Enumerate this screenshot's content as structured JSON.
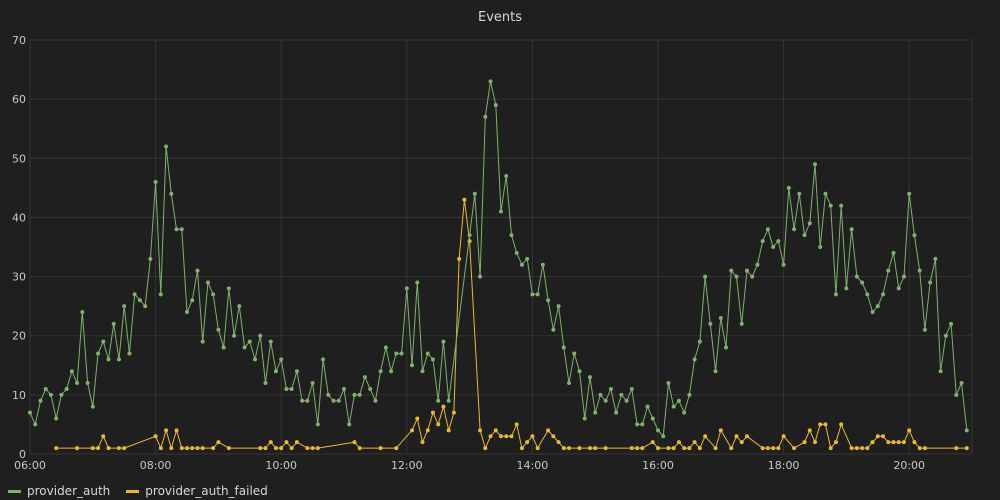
{
  "chart_data": {
    "type": "line",
    "title": "Events",
    "xlabel": "",
    "ylabel": "",
    "ylim": [
      0,
      70
    ],
    "yticks": [
      0,
      10,
      20,
      30,
      40,
      50,
      60,
      70
    ],
    "xlim": [
      "06:00",
      "21:00"
    ],
    "xticks": [
      "06:00",
      "08:00",
      "10:00",
      "12:00",
      "14:00",
      "16:00",
      "18:00",
      "20:00"
    ],
    "grid": true,
    "legend_position": "bottom-left",
    "series": [
      {
        "name": "provider_auth",
        "color": "#7eb26d",
        "points": [
          [
            "06:00",
            7
          ],
          [
            "06:05",
            5
          ],
          [
            "06:10",
            9
          ],
          [
            "06:15",
            11
          ],
          [
            "06:20",
            10
          ],
          [
            "06:25",
            6
          ],
          [
            "06:30",
            10
          ],
          [
            "06:35",
            11
          ],
          [
            "06:40",
            14
          ],
          [
            "06:45",
            12
          ],
          [
            "06:50",
            24
          ],
          [
            "06:55",
            12
          ],
          [
            "07:00",
            8
          ],
          [
            "07:05",
            17
          ],
          [
            "07:10",
            19
          ],
          [
            "07:15",
            16
          ],
          [
            "07:20",
            22
          ],
          [
            "07:25",
            16
          ],
          [
            "07:30",
            25
          ],
          [
            "07:35",
            17
          ],
          [
            "07:40",
            27
          ],
          [
            "07:45",
            26
          ],
          [
            "07:50",
            25
          ],
          [
            "07:55",
            33
          ],
          [
            "08:00",
            46
          ],
          [
            "08:05",
            27
          ],
          [
            "08:10",
            52
          ],
          [
            "08:15",
            44
          ],
          [
            "08:20",
            38
          ],
          [
            "08:25",
            38
          ],
          [
            "08:30",
            24
          ],
          [
            "08:35",
            26
          ],
          [
            "08:40",
            31
          ],
          [
            "08:45",
            19
          ],
          [
            "08:50",
            29
          ],
          [
            "08:55",
            27
          ],
          [
            "09:00",
            21
          ],
          [
            "09:05",
            18
          ],
          [
            "09:10",
            28
          ],
          [
            "09:15",
            20
          ],
          [
            "09:20",
            25
          ],
          [
            "09:25",
            18
          ],
          [
            "09:30",
            19
          ],
          [
            "09:35",
            16
          ],
          [
            "09:40",
            20
          ],
          [
            "09:45",
            12
          ],
          [
            "09:50",
            19
          ],
          [
            "09:55",
            14
          ],
          [
            "10:00",
            16
          ],
          [
            "10:05",
            11
          ],
          [
            "10:10",
            11
          ],
          [
            "10:15",
            14
          ],
          [
            "10:20",
            9
          ],
          [
            "10:25",
            9
          ],
          [
            "10:30",
            12
          ],
          [
            "10:35",
            5
          ],
          [
            "10:40",
            16
          ],
          [
            "10:45",
            10
          ],
          [
            "10:50",
            9
          ],
          [
            "10:55",
            9
          ],
          [
            "11:00",
            11
          ],
          [
            "11:05",
            5
          ],
          [
            "11:10",
            10
          ],
          [
            "11:15",
            10
          ],
          [
            "11:20",
            13
          ],
          [
            "11:25",
            11
          ],
          [
            "11:30",
            9
          ],
          [
            "11:35",
            14
          ],
          [
            "11:40",
            18
          ],
          [
            "11:45",
            14
          ],
          [
            "11:50",
            17
          ],
          [
            "11:55",
            17
          ],
          [
            "12:00",
            28
          ],
          [
            "12:05",
            15
          ],
          [
            "12:10",
            29
          ],
          [
            "12:15",
            14
          ],
          [
            "12:20",
            17
          ],
          [
            "12:25",
            16
          ],
          [
            "12:30",
            9
          ],
          [
            "12:35",
            19
          ],
          [
            "12:40",
            9
          ],
          [
            "13:00",
            37
          ],
          [
            "13:05",
            44
          ],
          [
            "13:10",
            30
          ],
          [
            "13:15",
            57
          ],
          [
            "13:20",
            63
          ],
          [
            "13:25",
            59
          ],
          [
            "13:30",
            41
          ],
          [
            "13:35",
            47
          ],
          [
            "13:40",
            37
          ],
          [
            "13:45",
            34
          ],
          [
            "13:50",
            32
          ],
          [
            "13:55",
            33
          ],
          [
            "14:00",
            27
          ],
          [
            "14:05",
            27
          ],
          [
            "14:10",
            32
          ],
          [
            "14:15",
            26
          ],
          [
            "14:20",
            21
          ],
          [
            "14:25",
            25
          ],
          [
            "14:30",
            18
          ],
          [
            "14:35",
            12
          ],
          [
            "14:40",
            17
          ],
          [
            "14:45",
            14
          ],
          [
            "14:50",
            6
          ],
          [
            "14:55",
            13
          ],
          [
            "15:00",
            7
          ],
          [
            "15:05",
            10
          ],
          [
            "15:10",
            9
          ],
          [
            "15:15",
            11
          ],
          [
            "15:20",
            7
          ],
          [
            "15:25",
            10
          ],
          [
            "15:30",
            9
          ],
          [
            "15:35",
            11
          ],
          [
            "15:40",
            5
          ],
          [
            "15:45",
            5
          ],
          [
            "15:50",
            8
          ],
          [
            "15:55",
            6
          ],
          [
            "16:00",
            4
          ],
          [
            "16:05",
            3
          ],
          [
            "16:10",
            12
          ],
          [
            "16:15",
            8
          ],
          [
            "16:20",
            9
          ],
          [
            "16:25",
            7
          ],
          [
            "16:30",
            10
          ],
          [
            "16:35",
            16
          ],
          [
            "16:40",
            19
          ],
          [
            "16:45",
            30
          ],
          [
            "16:50",
            22
          ],
          [
            "16:55",
            14
          ],
          [
            "17:00",
            23
          ],
          [
            "17:05",
            18
          ],
          [
            "17:10",
            31
          ],
          [
            "17:15",
            30
          ],
          [
            "17:20",
            22
          ],
          [
            "17:25",
            31
          ],
          [
            "17:30",
            30
          ],
          [
            "17:35",
            32
          ],
          [
            "17:40",
            36
          ],
          [
            "17:45",
            38
          ],
          [
            "17:50",
            35
          ],
          [
            "17:55",
            36
          ],
          [
            "18:00",
            32
          ],
          [
            "18:05",
            45
          ],
          [
            "18:10",
            38
          ],
          [
            "18:15",
            44
          ],
          [
            "18:20",
            37
          ],
          [
            "18:25",
            39
          ],
          [
            "18:30",
            49
          ],
          [
            "18:35",
            35
          ],
          [
            "18:40",
            44
          ],
          [
            "18:45",
            42
          ],
          [
            "18:50",
            27
          ],
          [
            "18:55",
            42
          ],
          [
            "19:00",
            28
          ],
          [
            "19:05",
            38
          ],
          [
            "19:10",
            30
          ],
          [
            "19:15",
            29
          ],
          [
            "19:20",
            27
          ],
          [
            "19:25",
            24
          ],
          [
            "19:30",
            25
          ],
          [
            "19:35",
            27
          ],
          [
            "19:40",
            31
          ],
          [
            "19:45",
            34
          ],
          [
            "19:50",
            28
          ],
          [
            "19:55",
            30
          ],
          [
            "20:00",
            44
          ],
          [
            "20:05",
            37
          ],
          [
            "20:10",
            31
          ],
          [
            "20:15",
            21
          ],
          [
            "20:20",
            29
          ],
          [
            "20:25",
            33
          ],
          [
            "20:30",
            14
          ],
          [
            "20:35",
            20
          ],
          [
            "20:40",
            22
          ],
          [
            "20:45",
            10
          ],
          [
            "20:50",
            12
          ],
          [
            "20:55",
            4
          ]
        ]
      },
      {
        "name": "provider_auth_failed",
        "color": "#eab839",
        "points": [
          [
            "06:25",
            1
          ],
          [
            "06:45",
            1
          ],
          [
            "07:00",
            1
          ],
          [
            "07:05",
            1
          ],
          [
            "07:10",
            3
          ],
          [
            "07:15",
            1
          ],
          [
            "07:25",
            1
          ],
          [
            "07:30",
            1
          ],
          [
            "08:00",
            3
          ],
          [
            "08:05",
            1
          ],
          [
            "08:10",
            4
          ],
          [
            "08:15",
            1
          ],
          [
            "08:20",
            4
          ],
          [
            "08:25",
            1
          ],
          [
            "08:30",
            1
          ],
          [
            "08:35",
            1
          ],
          [
            "08:40",
            1
          ],
          [
            "08:45",
            1
          ],
          [
            "08:55",
            1
          ],
          [
            "09:00",
            2
          ],
          [
            "09:10",
            1
          ],
          [
            "09:40",
            1
          ],
          [
            "09:45",
            1
          ],
          [
            "09:50",
            2
          ],
          [
            "09:55",
            1
          ],
          [
            "10:00",
            1
          ],
          [
            "10:05",
            2
          ],
          [
            "10:10",
            1
          ],
          [
            "10:15",
            2
          ],
          [
            "10:25",
            1
          ],
          [
            "10:30",
            1
          ],
          [
            "10:35",
            1
          ],
          [
            "11:10",
            2
          ],
          [
            "11:15",
            1
          ],
          [
            "11:35",
            1
          ],
          [
            "11:50",
            1
          ],
          [
            "12:05",
            4
          ],
          [
            "12:10",
            6
          ],
          [
            "12:15",
            2
          ],
          [
            "12:20",
            4
          ],
          [
            "12:25",
            7
          ],
          [
            "12:30",
            5
          ],
          [
            "12:35",
            8
          ],
          [
            "12:40",
            4
          ],
          [
            "12:45",
            7
          ],
          [
            "12:50",
            33
          ],
          [
            "12:55",
            43
          ],
          [
            "13:00",
            36
          ],
          [
            "13:10",
            4
          ],
          [
            "13:15",
            1
          ],
          [
            "13:20",
            3
          ],
          [
            "13:25",
            4
          ],
          [
            "13:30",
            3
          ],
          [
            "13:35",
            3
          ],
          [
            "13:40",
            3
          ],
          [
            "13:45",
            5
          ],
          [
            "13:50",
            1
          ],
          [
            "13:55",
            2
          ],
          [
            "14:00",
            3
          ],
          [
            "14:05",
            1
          ],
          [
            "14:15",
            4
          ],
          [
            "14:20",
            3
          ],
          [
            "14:25",
            2
          ],
          [
            "14:30",
            1
          ],
          [
            "14:35",
            1
          ],
          [
            "14:45",
            1
          ],
          [
            "14:55",
            1
          ],
          [
            "15:00",
            1
          ],
          [
            "15:10",
            1
          ],
          [
            "15:35",
            1
          ],
          [
            "15:40",
            1
          ],
          [
            "15:45",
            1
          ],
          [
            "15:55",
            2
          ],
          [
            "16:00",
            1
          ],
          [
            "16:10",
            1
          ],
          [
            "16:15",
            1
          ],
          [
            "16:20",
            2
          ],
          [
            "16:25",
            1
          ],
          [
            "16:30",
            1
          ],
          [
            "16:35",
            2
          ],
          [
            "16:40",
            1
          ],
          [
            "16:45",
            3
          ],
          [
            "16:55",
            1
          ],
          [
            "17:00",
            4
          ],
          [
            "17:10",
            1
          ],
          [
            "17:15",
            3
          ],
          [
            "17:20",
            2
          ],
          [
            "17:25",
            3
          ],
          [
            "17:40",
            1
          ],
          [
            "17:45",
            1
          ],
          [
            "17:50",
            1
          ],
          [
            "17:55",
            1
          ],
          [
            "18:00",
            3
          ],
          [
            "18:10",
            1
          ],
          [
            "18:20",
            2
          ],
          [
            "18:25",
            4
          ],
          [
            "18:30",
            2
          ],
          [
            "18:35",
            5
          ],
          [
            "18:40",
            5
          ],
          [
            "18:45",
            1
          ],
          [
            "18:50",
            2
          ],
          [
            "18:55",
            5
          ],
          [
            "19:05",
            1
          ],
          [
            "19:10",
            1
          ],
          [
            "19:15",
            1
          ],
          [
            "19:20",
            1
          ],
          [
            "19:25",
            2
          ],
          [
            "19:30",
            3
          ],
          [
            "19:35",
            3
          ],
          [
            "19:40",
            2
          ],
          [
            "19:45",
            2
          ],
          [
            "19:50",
            2
          ],
          [
            "19:55",
            2
          ],
          [
            "20:00",
            4
          ],
          [
            "20:05",
            2
          ],
          [
            "20:10",
            1
          ],
          [
            "20:15",
            1
          ],
          [
            "20:45",
            1
          ],
          [
            "20:55",
            1
          ]
        ]
      }
    ]
  }
}
